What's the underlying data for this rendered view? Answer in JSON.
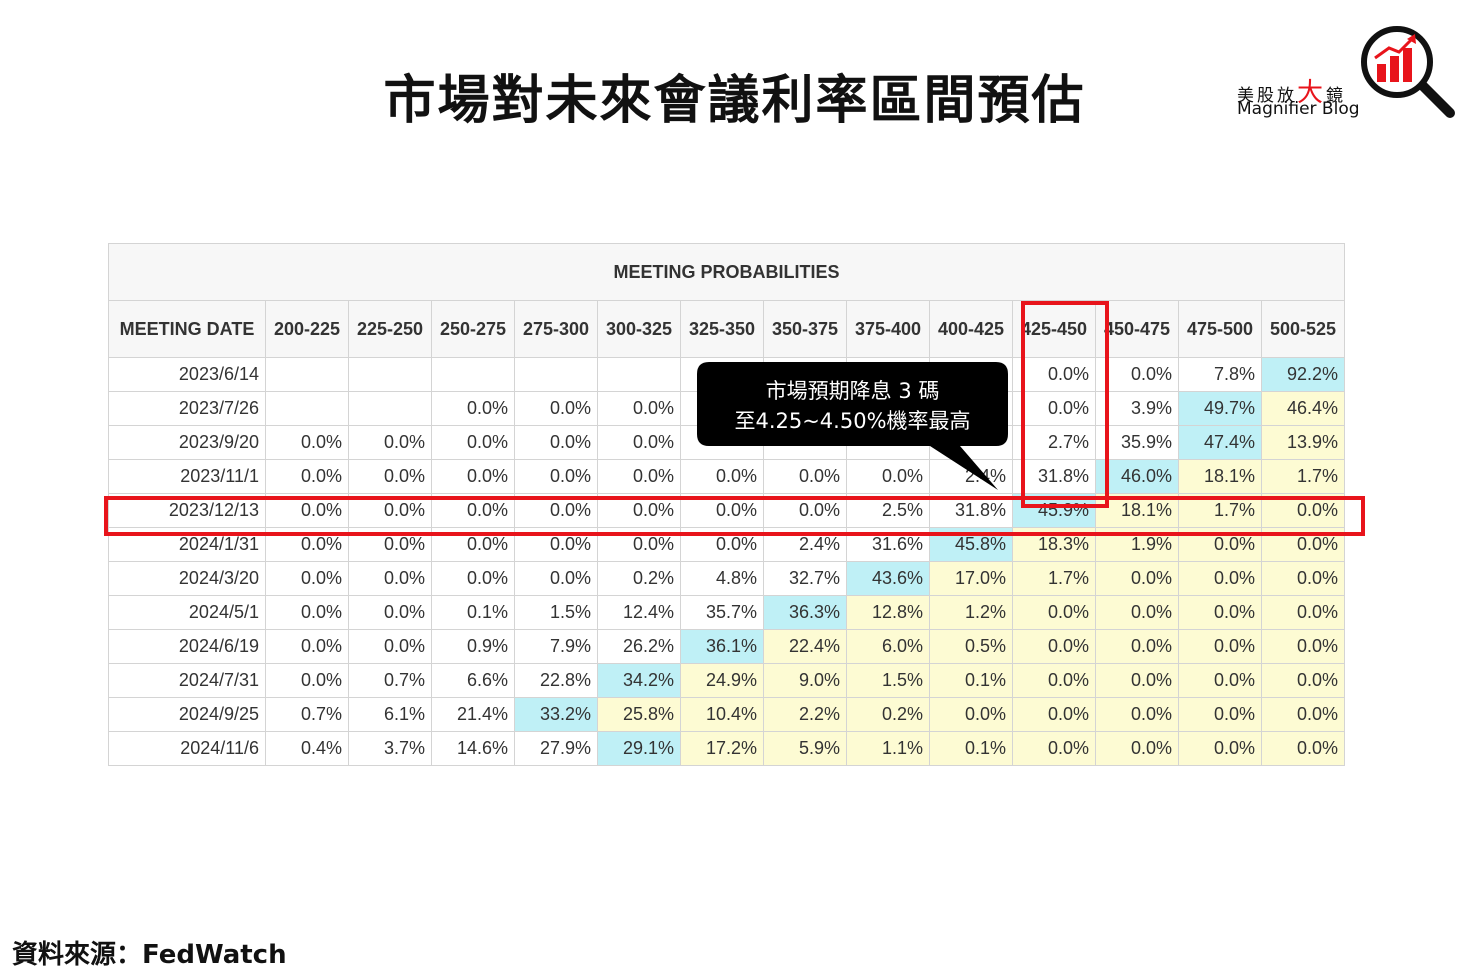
{
  "header": {
    "title": "市場對未來會議利率區間預估",
    "logo": {
      "name_parts": [
        "美股放",
        "大",
        "鏡"
      ],
      "subtitle": "Magnifier Blog"
    }
  },
  "table": {
    "title": "MEETING PROBABILITIES",
    "columns": [
      "MEETING DATE",
      "200-225",
      "225-250",
      "250-275",
      "275-300",
      "300-325",
      "325-350",
      "350-375",
      "375-400",
      "400-425",
      "425-450",
      "450-475",
      "475-500",
      "500-525"
    ],
    "rows": [
      {
        "date": "2023/6/14",
        "cells": [
          null,
          null,
          null,
          null,
          null,
          null,
          null,
          null,
          null,
          "0.0%",
          "0.0%",
          "7.8%",
          "92.2%"
        ]
      },
      {
        "date": "2023/7/26",
        "cells": [
          null,
          null,
          "0.0%",
          "0.0%",
          "0.0%",
          null,
          null,
          null,
          null,
          "0.0%",
          "3.9%",
          "49.7%",
          "46.4%"
        ]
      },
      {
        "date": "2023/9/20",
        "cells": [
          "0.0%",
          "0.0%",
          "0.0%",
          "0.0%",
          "0.0%",
          null,
          null,
          null,
          null,
          "2.7%",
          "35.9%",
          "47.4%",
          "13.9%"
        ]
      },
      {
        "date": "2023/11/1",
        "cells": [
          "0.0%",
          "0.0%",
          "0.0%",
          "0.0%",
          "0.0%",
          "0.0%",
          "0.0%",
          "0.0%",
          "2.4%",
          "31.8%",
          "46.0%",
          "18.1%",
          "1.7%"
        ]
      },
      {
        "date": "2023/12/13",
        "cells": [
          "0.0%",
          "0.0%",
          "0.0%",
          "0.0%",
          "0.0%",
          "0.0%",
          "0.0%",
          "2.5%",
          "31.8%",
          "45.9%",
          "18.1%",
          "1.7%",
          "0.0%"
        ]
      },
      {
        "date": "2024/1/31",
        "cells": [
          "0.0%",
          "0.0%",
          "0.0%",
          "0.0%",
          "0.0%",
          "0.0%",
          "2.4%",
          "31.6%",
          "45.8%",
          "18.3%",
          "1.9%",
          "0.0%",
          "0.0%"
        ]
      },
      {
        "date": "2024/3/20",
        "cells": [
          "0.0%",
          "0.0%",
          "0.0%",
          "0.0%",
          "0.2%",
          "4.8%",
          "32.7%",
          "43.6%",
          "17.0%",
          "1.7%",
          "0.0%",
          "0.0%",
          "0.0%"
        ]
      },
      {
        "date": "2024/5/1",
        "cells": [
          "0.0%",
          "0.0%",
          "0.1%",
          "1.5%",
          "12.4%",
          "35.7%",
          "36.3%",
          "12.8%",
          "1.2%",
          "0.0%",
          "0.0%",
          "0.0%",
          "0.0%"
        ]
      },
      {
        "date": "2024/6/19",
        "cells": [
          "0.0%",
          "0.0%",
          "0.9%",
          "7.9%",
          "26.2%",
          "36.1%",
          "22.4%",
          "6.0%",
          "0.5%",
          "0.0%",
          "0.0%",
          "0.0%",
          "0.0%"
        ]
      },
      {
        "date": "2024/7/31",
        "cells": [
          "0.0%",
          "0.7%",
          "6.6%",
          "22.8%",
          "34.2%",
          "24.9%",
          "9.0%",
          "1.5%",
          "0.1%",
          "0.0%",
          "0.0%",
          "0.0%",
          "0.0%"
        ]
      },
      {
        "date": "2024/9/25",
        "cells": [
          "0.7%",
          "6.1%",
          "21.4%",
          "33.2%",
          "25.8%",
          "10.4%",
          "2.2%",
          "0.2%",
          "0.0%",
          "0.0%",
          "0.0%",
          "0.0%",
          "0.0%"
        ]
      },
      {
        "date": "2024/11/6",
        "cells": [
          "0.4%",
          "3.7%",
          "14.6%",
          "27.9%",
          "29.1%",
          "17.2%",
          "5.9%",
          "1.1%",
          "0.1%",
          "0.0%",
          "0.0%",
          "0.0%",
          "0.0%"
        ]
      }
    ]
  },
  "callout": {
    "lines": [
      "市場預期降息 3 碼",
      "至4.25~4.50%機率最高"
    ]
  },
  "source": "資料來源：FedWatch"
}
